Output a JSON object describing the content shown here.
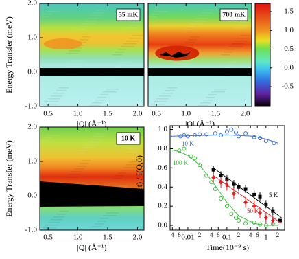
{
  "chart_data": [
    {
      "type": "heatmap",
      "label": "55 mK",
      "xlabel": "|Q| (Å⁻¹)",
      "ylabel": "Energy Transfer (meV)",
      "xlim": [
        0.36,
        2.11
      ],
      "ylim": [
        -1,
        2
      ],
      "xticks": [
        0.5,
        {
          "value": 1,
          "label": "1.0"
        },
        1.5,
        {
          "value": 2,
          "label": "2.0"
        }
      ],
      "yticks": [
        {
          "value": -1,
          "label": "-1.0"
        },
        {
          "value": 0,
          "label": "0.0"
        },
        {
          "value": 1,
          "label": "1.0"
        },
        {
          "value": 2,
          "label": "2.0"
        }
      ]
    },
    {
      "type": "heatmap",
      "label": "700 mK",
      "xlabel": "|Q| (Å⁻¹)",
      "xlim": [
        0.36,
        2.11
      ],
      "ylim": [
        -1,
        2
      ],
      "xticks": [
        0.5,
        {
          "value": 1,
          "label": "1.0"
        },
        1.5,
        {
          "value": 2,
          "label": "2.0"
        }
      ]
    },
    {
      "type": "heatmap",
      "label": "10 K",
      "xlabel": "|Q| (Å⁻¹)",
      "ylabel": "Energy Transfer (meV)",
      "xlim": [
        0.36,
        2.11
      ],
      "ylim": [
        -1,
        2
      ],
      "xticks": [
        0.5,
        {
          "value": 1,
          "label": "1.0"
        },
        1.5,
        {
          "value": 2,
          "label": "2.0"
        }
      ],
      "yticks": [
        {
          "value": -1,
          "label": "-1.0"
        },
        {
          "value": 0,
          "label": "0.0"
        },
        {
          "value": 1,
          "label": "1.0"
        },
        {
          "value": 2,
          "label": "2.0"
        }
      ]
    },
    {
      "type": "colorbar",
      "ylim": [
        -1.03,
        1.72
      ],
      "yticks": [
        -0.5,
        {
          "value": 0,
          "label": "0.0"
        },
        0.5,
        {
          "value": 1,
          "label": "1.0"
        },
        1.5
      ]
    },
    {
      "type": "scatter",
      "xlabel": "Time(10⁻⁹ s)",
      "ylabel": "I(Q,t) / I(Q,0)",
      "log_x": true,
      "xlim": [
        0.0035,
        3
      ],
      "ylim": [
        -0.05,
        1.04
      ],
      "xticks": [
        {
          "value": 0.004,
          "label": "4"
        },
        {
          "value": 0.006,
          "label": "6"
        },
        0.01,
        {
          "value": 0.02,
          "label": "2"
        },
        {
          "value": 0.04,
          "label": "4"
        },
        {
          "value": 0.06,
          "label": "6"
        },
        0.1,
        {
          "value": 0.2,
          "label": "2"
        },
        {
          "value": 0.4,
          "label": "4"
        },
        {
          "value": 0.6,
          "label": "6"
        },
        1,
        {
          "value": 2,
          "label": "2"
        }
      ],
      "yticks": [
        {
          "value": 0,
          "label": "0.0"
        },
        0.2,
        0.4,
        0.6,
        0.8,
        {
          "value": 1,
          "label": "1.0"
        }
      ],
      "series": [
        {
          "name": "10 K",
          "color": "#3a6fd8",
          "marker": "open-circle",
          "x": [
            0.0065,
            0.008,
            0.01,
            0.015,
            0.02,
            0.03,
            0.05,
            0.07,
            0.1,
            0.13,
            0.17,
            0.2,
            0.3,
            0.5,
            0.7,
            1.0,
            1.6
          ],
          "values": [
            0.93,
            0.94,
            0.93,
            0.94,
            0.95,
            0.95,
            0.96,
            0.94,
            0.98,
            1.0,
            0.97,
            0.93,
            0.96,
            0.92,
            0.91,
            0.88,
            0.86
          ],
          "fit": {
            "x": [
              0.0035,
              0.01,
              0.1,
              0.5,
              1,
              2
            ],
            "values": [
              0.93,
              0.935,
              0.945,
              0.93,
              0.9,
              0.86
            ]
          }
        },
        {
          "name": "100 K",
          "color": "#3cc03c",
          "marker": "open-circle",
          "x": [
            0.006,
            0.008,
            0.012,
            0.015,
            0.02,
            0.03,
            0.04,
            0.05,
            0.07,
            0.1,
            0.13,
            0.17,
            0.2,
            0.3,
            0.5,
            0.7,
            1.0,
            1.5
          ],
          "values": [
            0.78,
            0.8,
            0.72,
            0.7,
            0.63,
            0.52,
            0.45,
            0.38,
            0.28,
            0.2,
            0.12,
            0.08,
            0.05,
            0.02,
            0.03,
            0.01,
            0.0,
            0.02
          ],
          "fit": {
            "x": [
              0.0035,
              0.006,
              0.01,
              0.02,
              0.04,
              0.07,
              0.1,
              0.2,
              0.5,
              1,
              2
            ],
            "values": [
              0.79,
              0.77,
              0.73,
              0.63,
              0.47,
              0.33,
              0.24,
              0.1,
              0.02,
              0.0,
              0.0
            ]
          }
        },
        {
          "name": "5 K",
          "color": "#000000",
          "marker": "square",
          "x": [
            0.045,
            0.07,
            0.1,
            0.15,
            0.2,
            0.3,
            0.5,
            0.7,
            1.0,
            1.5,
            2.3
          ],
          "values": [
            0.58,
            0.52,
            0.48,
            0.43,
            0.4,
            0.38,
            0.32,
            0.3,
            0.22,
            0.15,
            0.05
          ],
          "fit": {
            "x": [
              0.045,
              2.5
            ],
            "values": [
              0.6,
              0.08
            ]
          }
        },
        {
          "name": "50 K",
          "color": "#e02020",
          "marker": "diamond",
          "x": [
            0.045,
            0.07,
            0.1,
            0.15,
            0.3,
            0.5,
            0.7,
            1.0,
            1.5
          ],
          "values": [
            0.5,
            0.45,
            0.42,
            0.33,
            0.24,
            0.2,
            0.13,
            0.08,
            0.05
          ],
          "fit": {
            "x": [
              0.045,
              2.5
            ],
            "values": [
              0.52,
              0.02
            ]
          }
        }
      ]
    }
  ]
}
